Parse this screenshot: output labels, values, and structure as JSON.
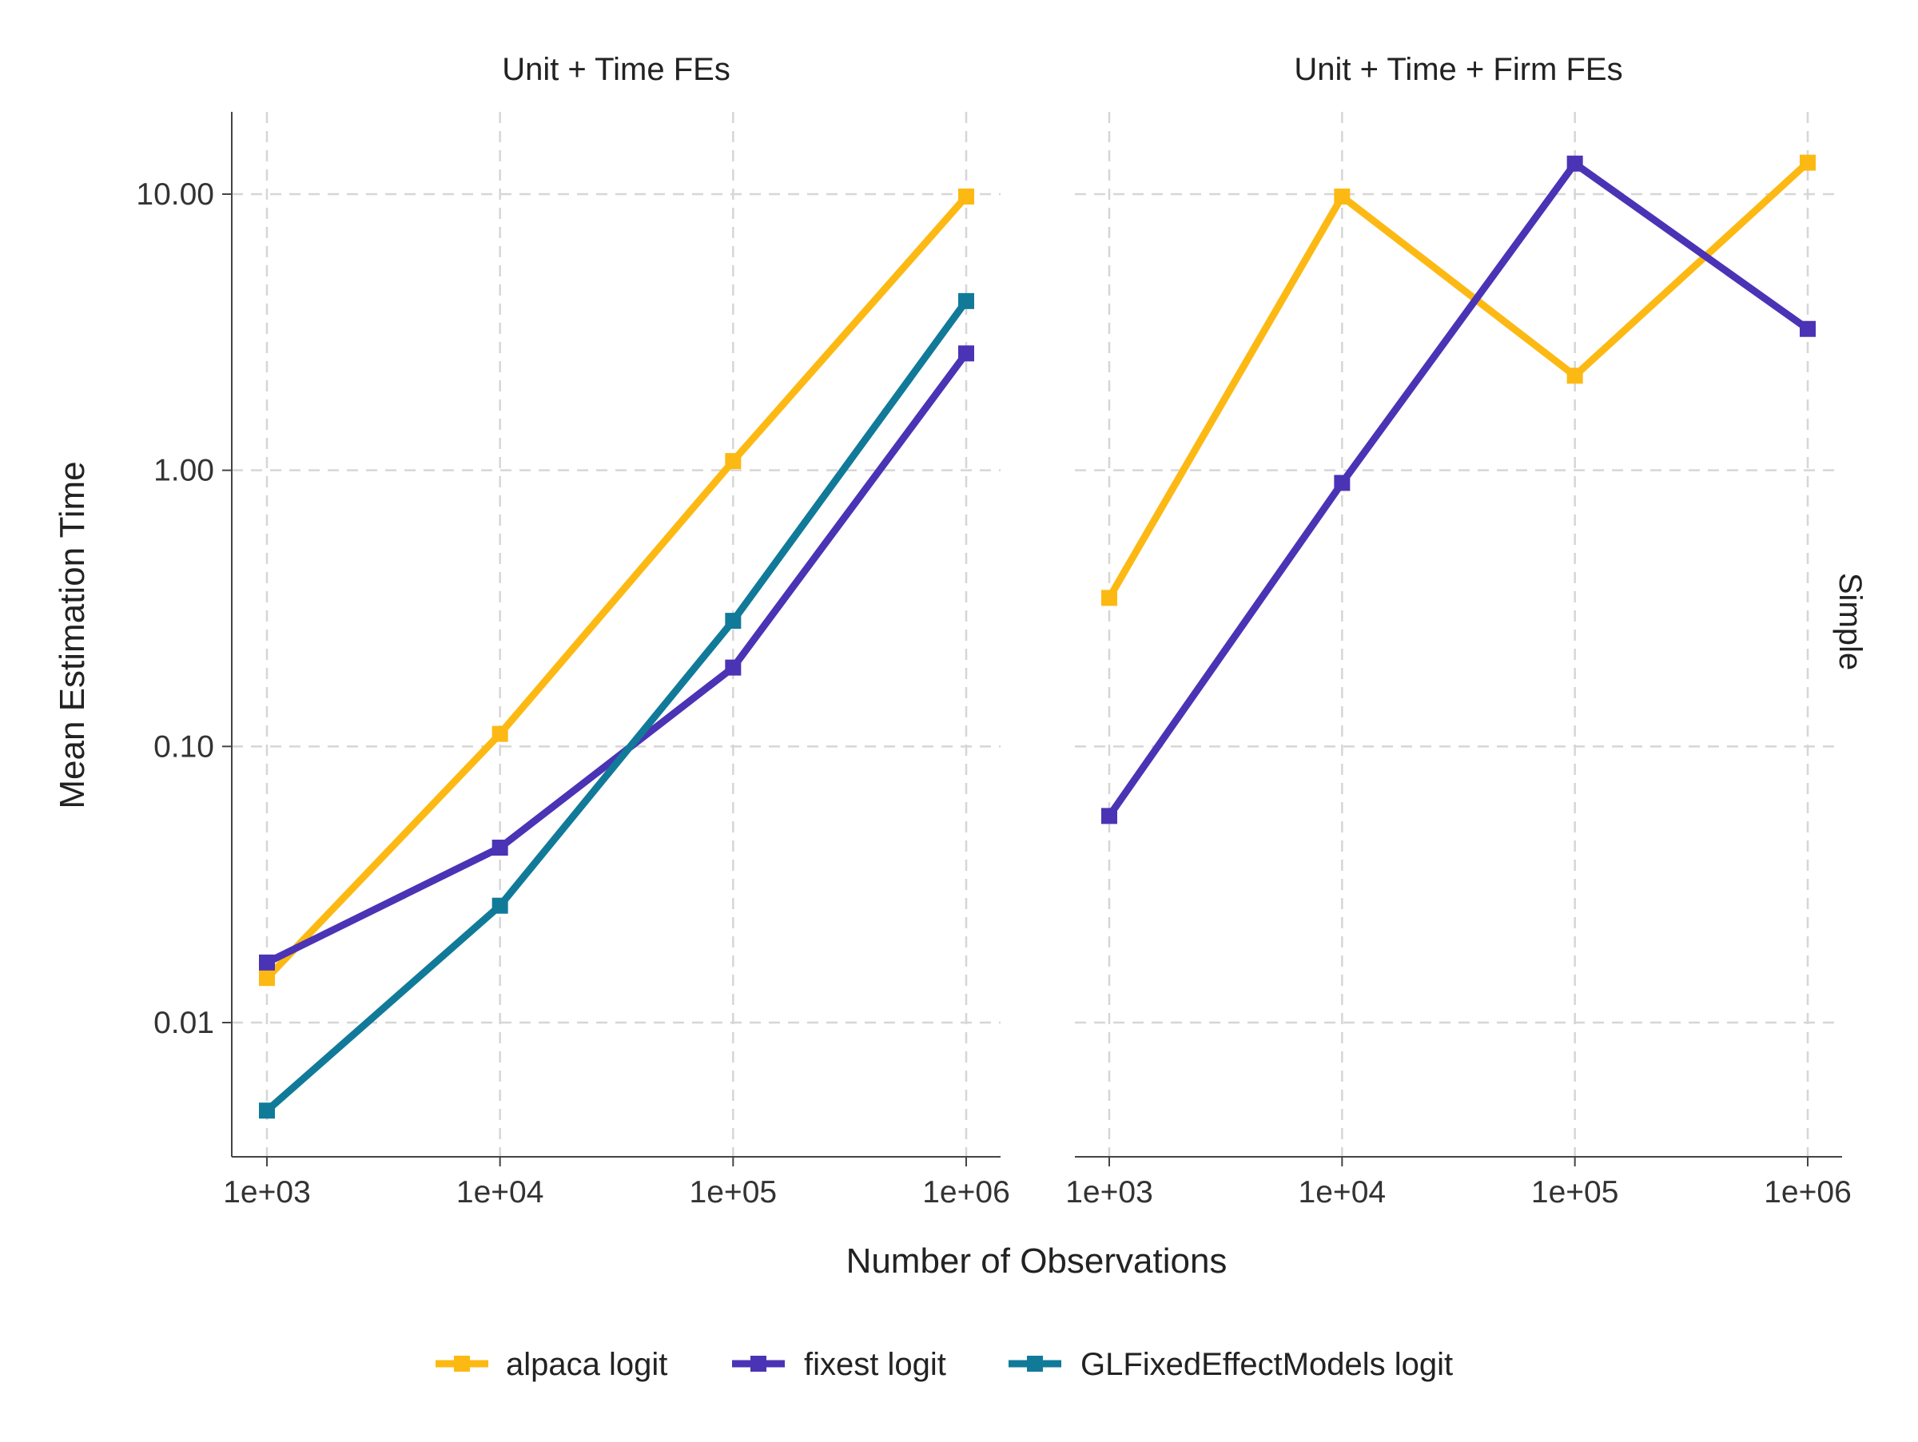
{
  "chart_data": {
    "type": "line",
    "xlabel": "Number of Observations",
    "ylabel": "Mean Estimation Time",
    "x_scale": "log10",
    "y_scale": "log10",
    "x": [
      1000,
      10000,
      100000,
      1000000
    ],
    "x_tick_labels": [
      "1e+03",
      "1e+04",
      "1e+05",
      "1e+06"
    ],
    "y_ticks": [
      0.01,
      0.1,
      1,
      10
    ],
    "y_tick_labels": [
      "0.01",
      "0.10",
      "1.00",
      "10.00"
    ],
    "ylim": [
      0.0033,
      20
    ],
    "grid": true,
    "legend_position": "bottom",
    "strip_label": "Simple",
    "series_colors": {
      "alpaca logit": "#FDB913",
      "fixest logit": "#4B33B5",
      "GLFixedEffectModels logit": "#117A99"
    },
    "legend": [
      "alpaca logit",
      "fixest logit",
      "GLFixedEffectModels logit"
    ],
    "facets": [
      {
        "title": "Unit + Time FEs",
        "series": [
          {
            "name": "alpaca logit",
            "values": [
              0.0145,
              0.111,
              1.08,
              9.8
            ]
          },
          {
            "name": "fixest logit",
            "values": [
              0.0165,
              0.043,
              0.193,
              2.65
            ]
          },
          {
            "name": "GLFixedEffectModels logit",
            "values": [
              0.0048,
              0.0265,
              0.285,
              4.1
            ]
          }
        ]
      },
      {
        "title": "Unit + Time + Firm FEs",
        "series": [
          {
            "name": "alpaca logit",
            "values": [
              0.345,
              9.8,
              2.2,
              13.0
            ]
          },
          {
            "name": "fixest logit",
            "values": [
              0.056,
              0.9,
              12.9,
              3.25
            ]
          }
        ]
      }
    ]
  }
}
